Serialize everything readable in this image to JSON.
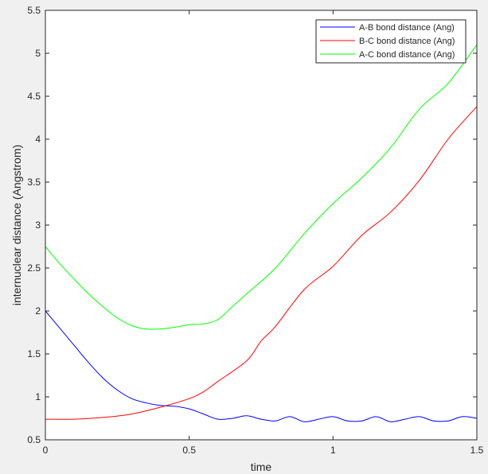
{
  "chart_data": {
    "type": "line",
    "title": "",
    "xlabel": "time",
    "ylabel": "internuclear distance (Angstrom)",
    "xlim": [
      0,
      1.5
    ],
    "ylim": [
      0.5,
      5.5
    ],
    "xticks": [
      0,
      0.5,
      1,
      1.5
    ],
    "xtick_labels": [
      "0",
      "0.5",
      "1",
      "1.5"
    ],
    "yticks": [
      0.5,
      1,
      1.5,
      2,
      2.5,
      3,
      3.5,
      4,
      4.5,
      5,
      5.5
    ],
    "ytick_labels": [
      "0.5",
      "1",
      "1.5",
      "2",
      "2.5",
      "3",
      "3.5",
      "4",
      "4.5",
      "5",
      "5.5"
    ],
    "grid": false,
    "legend_position": "top-right",
    "series": [
      {
        "name": "A-B bond distance (Ang)",
        "color": "#0000ff",
        "x": [
          0,
          0.05,
          0.1,
          0.15,
          0.2,
          0.25,
          0.3,
          0.35,
          0.4,
          0.45,
          0.5,
          0.55,
          0.6,
          0.65,
          0.7,
          0.75,
          0.8,
          0.85,
          0.9,
          0.95,
          1.0,
          1.05,
          1.1,
          1.15,
          1.2,
          1.25,
          1.3,
          1.35,
          1.4,
          1.45,
          1.5
        ],
        "y": [
          2.0,
          1.8,
          1.6,
          1.4,
          1.22,
          1.08,
          0.98,
          0.93,
          0.9,
          0.89,
          0.86,
          0.8,
          0.74,
          0.75,
          0.78,
          0.74,
          0.72,
          0.77,
          0.71,
          0.74,
          0.77,
          0.72,
          0.72,
          0.77,
          0.71,
          0.74,
          0.77,
          0.72,
          0.72,
          0.77,
          0.75
        ]
      },
      {
        "name": "B-C bond distance (Ang)",
        "color": "#ff0000",
        "x": [
          0,
          0.1,
          0.2,
          0.3,
          0.4,
          0.5,
          0.55,
          0.6,
          0.7,
          0.75,
          0.8,
          0.9,
          1.0,
          1.1,
          1.2,
          1.3,
          1.4,
          1.5
        ],
        "y": [
          0.74,
          0.74,
          0.76,
          0.8,
          0.88,
          0.98,
          1.06,
          1.18,
          1.42,
          1.65,
          1.82,
          2.25,
          2.52,
          2.88,
          3.15,
          3.52,
          4.0,
          4.38
        ]
      },
      {
        "name": "A-C bond distance (Ang)",
        "color": "#00ff00",
        "x": [
          0,
          0.05,
          0.1,
          0.15,
          0.2,
          0.25,
          0.3,
          0.35,
          0.4,
          0.45,
          0.5,
          0.55,
          0.6,
          0.65,
          0.7,
          0.8,
          0.9,
          1.0,
          1.1,
          1.2,
          1.3,
          1.4,
          1.5
        ],
        "y": [
          2.75,
          2.55,
          2.37,
          2.2,
          2.05,
          1.92,
          1.83,
          1.79,
          1.79,
          1.81,
          1.84,
          1.85,
          1.9,
          2.05,
          2.2,
          2.5,
          2.9,
          3.25,
          3.55,
          3.9,
          4.35,
          4.65,
          5.1
        ]
      }
    ]
  }
}
